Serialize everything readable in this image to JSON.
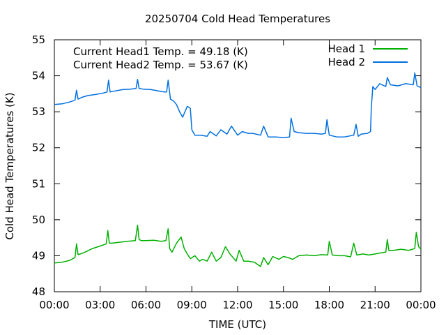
{
  "chart_data": {
    "type": "line",
    "title": "20250704 Cold Head Temperatures",
    "xlabel": "TIME (UTC)",
    "ylabel": "Cold Head Temperatures (K)",
    "xlim": [
      0,
      24
    ],
    "ylim": [
      48,
      55
    ],
    "x_ticks": [
      0,
      3,
      6,
      9,
      12,
      15,
      18,
      21,
      24
    ],
    "x_tick_labels": [
      "00:00",
      "03:00",
      "06:00",
      "09:00",
      "12:00",
      "15:00",
      "18:00",
      "21:00",
      "00:00"
    ],
    "y_ticks": [
      48,
      49,
      50,
      51,
      52,
      53,
      54,
      55
    ],
    "y_tick_labels": [
      "48",
      "49",
      "50",
      "51",
      "52",
      "53",
      "54",
      "55"
    ],
    "grid": false,
    "legend_position": "top-right",
    "annotations": [
      "Current Head1 Temp. = 49.18 (K)",
      "Current Head2 Temp. = 53.67 (K)"
    ],
    "series": [
      {
        "name": "Head 1",
        "color": "#00b000",
        "x": [
          0.0,
          0.5,
          1.0,
          1.35,
          1.45,
          1.55,
          1.7,
          2.0,
          2.5,
          3.0,
          3.4,
          3.5,
          3.6,
          3.8,
          4.2,
          4.8,
          5.3,
          5.45,
          5.55,
          5.7,
          6.0,
          6.5,
          7.0,
          7.3,
          7.45,
          7.55,
          7.7,
          8.0,
          8.3,
          8.5,
          8.7,
          8.9,
          9.2,
          9.5,
          9.7,
          10.0,
          10.3,
          10.6,
          10.9,
          11.2,
          11.5,
          11.9,
          12.1,
          12.4,
          12.7,
          13.1,
          13.5,
          13.7,
          14.0,
          14.3,
          14.7,
          15.0,
          15.3,
          15.6,
          16.0,
          16.5,
          17.0,
          17.5,
          17.9,
          18.0,
          18.2,
          18.6,
          19.0,
          19.4,
          19.6,
          19.8,
          20.2,
          20.6,
          21.0,
          21.4,
          21.7,
          21.8,
          21.9,
          22.2,
          22.7,
          23.2,
          23.6,
          23.7,
          23.85,
          24.0
        ],
        "y": [
          48.8,
          48.82,
          48.87,
          48.95,
          49.33,
          49.03,
          49.05,
          49.1,
          49.2,
          49.27,
          49.33,
          49.7,
          49.35,
          49.35,
          49.37,
          49.4,
          49.42,
          49.85,
          49.45,
          49.42,
          49.42,
          49.43,
          49.4,
          49.42,
          49.75,
          49.2,
          49.1,
          49.35,
          49.52,
          49.2,
          49.05,
          48.92,
          49.0,
          48.85,
          48.9,
          48.85,
          49.1,
          48.85,
          48.95,
          49.25,
          49.05,
          48.85,
          49.15,
          48.85,
          48.85,
          48.82,
          48.7,
          48.95,
          48.75,
          48.98,
          48.9,
          48.98,
          48.95,
          48.9,
          49.0,
          49.02,
          49.0,
          49.03,
          49.02,
          49.4,
          49.02,
          49.0,
          49.0,
          48.97,
          49.35,
          49.02,
          49.05,
          49.02,
          49.05,
          49.08,
          49.1,
          49.45,
          49.15,
          49.15,
          49.18,
          49.15,
          49.2,
          49.65,
          49.25,
          49.18
        ]
      },
      {
        "name": "Head 2",
        "color": "#0070e0",
        "x": [
          0.0,
          0.5,
          1.0,
          1.35,
          1.45,
          1.55,
          1.8,
          2.2,
          2.7,
          3.2,
          3.45,
          3.55,
          3.65,
          4.0,
          4.5,
          5.0,
          5.35,
          5.45,
          5.55,
          5.8,
          6.3,
          6.8,
          7.2,
          7.35,
          7.45,
          7.6,
          7.8,
          8.0,
          8.2,
          8.4,
          8.5,
          8.7,
          8.9,
          9.0,
          9.2,
          9.6,
          10.0,
          10.2,
          10.6,
          10.9,
          11.3,
          11.6,
          12.0,
          12.3,
          12.7,
          13.0,
          13.5,
          13.7,
          14.0,
          14.5,
          15.0,
          15.4,
          15.5,
          15.7,
          16.0,
          16.5,
          17.0,
          17.5,
          17.75,
          17.85,
          18.0,
          18.5,
          19.0,
          19.6,
          19.75,
          19.9,
          20.1,
          20.5,
          20.7,
          20.75,
          20.85,
          21.0,
          21.3,
          21.7,
          21.8,
          22.0,
          22.5,
          23.0,
          23.5,
          23.6,
          23.75,
          24.0
        ],
        "y": [
          53.2,
          53.22,
          53.27,
          53.32,
          53.6,
          53.35,
          53.4,
          53.45,
          53.48,
          53.52,
          53.55,
          53.88,
          53.55,
          53.58,
          53.62,
          53.63,
          53.65,
          53.9,
          53.65,
          53.63,
          53.62,
          53.58,
          53.55,
          53.55,
          53.88,
          53.35,
          53.3,
          53.2,
          53.0,
          52.85,
          52.95,
          53.15,
          53.1,
          52.5,
          52.35,
          52.35,
          52.32,
          52.45,
          52.33,
          52.5,
          52.38,
          52.6,
          52.35,
          52.45,
          52.4,
          52.4,
          52.35,
          52.6,
          52.3,
          52.3,
          52.28,
          52.3,
          52.82,
          52.45,
          52.42,
          52.4,
          52.4,
          52.38,
          52.4,
          52.78,
          52.35,
          52.3,
          52.3,
          52.35,
          52.65,
          52.32,
          52.38,
          52.4,
          52.45,
          53.1,
          53.7,
          53.62,
          53.78,
          53.7,
          53.95,
          53.75,
          53.72,
          53.78,
          53.75,
          54.08,
          53.72,
          53.67
        ]
      }
    ]
  }
}
